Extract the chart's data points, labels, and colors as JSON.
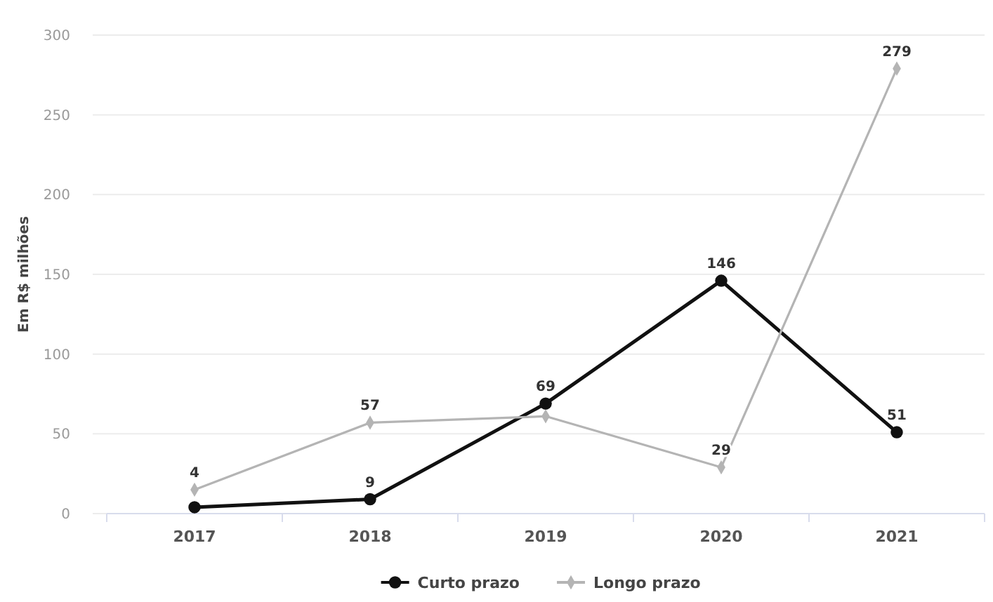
{
  "chart_data": {
    "type": "line",
    "ylabel": "Em R$ milhões",
    "categories": [
      "2017",
      "2018",
      "2019",
      "2020",
      "2021"
    ],
    "ylim": [
      0,
      300
    ],
    "yticks": [
      0,
      50,
      100,
      150,
      200,
      250,
      300
    ],
    "grid": "y",
    "legend": "bottom",
    "series": [
      {
        "name": "Curto prazo",
        "color": "#111111",
        "marker": "circle",
        "values": [
          4,
          9,
          69,
          146,
          51
        ],
        "value_labels": [
          "4",
          "9",
          "69",
          "146",
          "51"
        ]
      },
      {
        "name": "Longo prazo",
        "color": "#b4b4b4",
        "marker": "diamond",
        "values": [
          15,
          57,
          61,
          29,
          279
        ],
        "value_labels": [
          null,
          "57",
          null,
          "29",
          "279"
        ]
      }
    ]
  }
}
